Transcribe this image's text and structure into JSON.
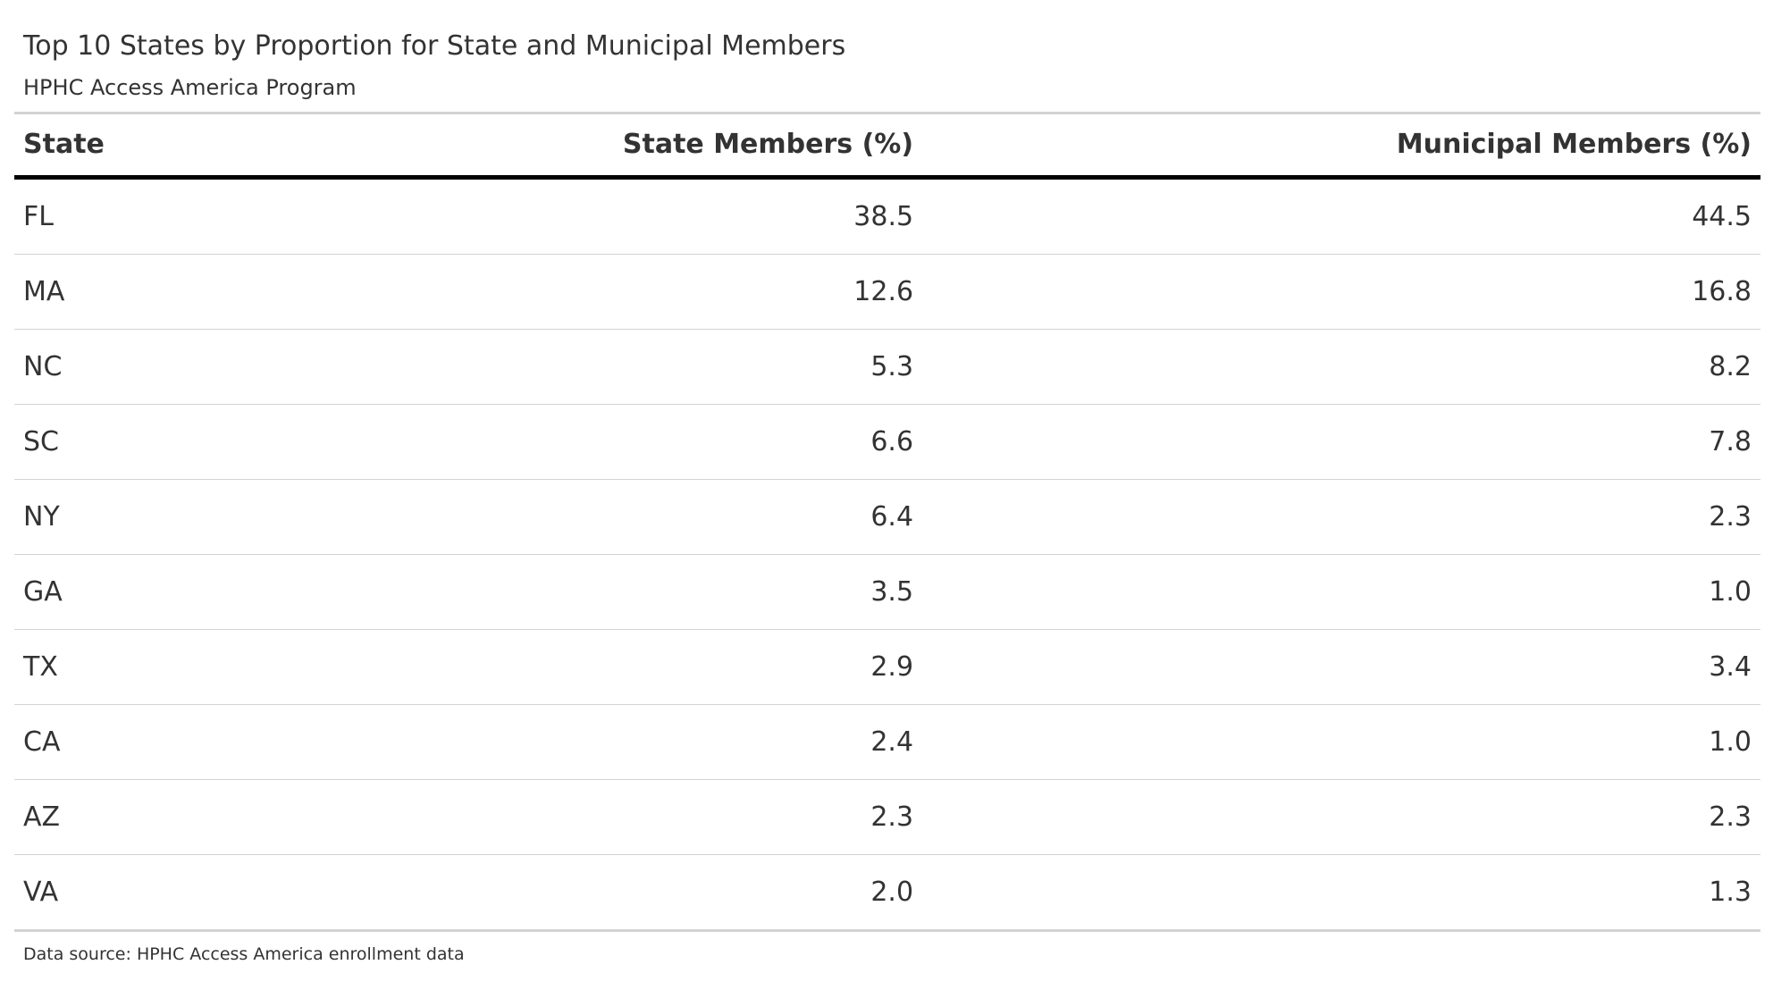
{
  "chart_data": {
    "type": "table",
    "title": "Top 10 States by Proportion for State and Municipal Members",
    "subtitle": "HPHC Access America Program",
    "columns": [
      "State",
      "State Members (%)",
      "Municipal Members (%)"
    ],
    "rows": [
      [
        "FL",
        "38.5",
        "44.5"
      ],
      [
        "MA",
        "12.6",
        "16.8"
      ],
      [
        "NC",
        "5.3",
        "8.2"
      ],
      [
        "SC",
        "6.6",
        "7.8"
      ],
      [
        "NY",
        "6.4",
        "2.3"
      ],
      [
        "GA",
        "3.5",
        "1.0"
      ],
      [
        "TX",
        "2.9",
        "3.4"
      ],
      [
        "CA",
        "2.4",
        "1.0"
      ],
      [
        "AZ",
        "2.3",
        "2.3"
      ],
      [
        "VA",
        "2.0",
        "1.3"
      ]
    ],
    "source_note": "Data source: HPHC Access America enrollment data"
  }
}
